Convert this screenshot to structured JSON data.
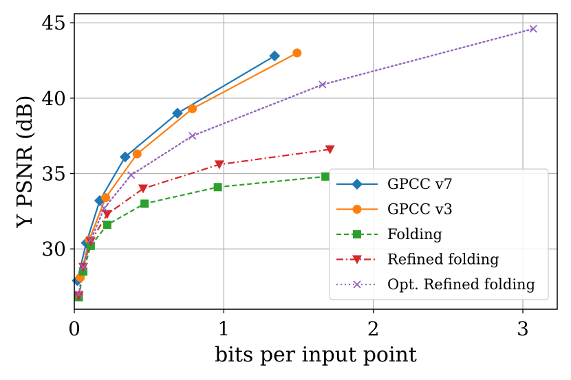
{
  "chart_data": {
    "type": "line",
    "title": "",
    "xlabel": "bits per input point",
    "ylabel": "Y PSNR (dB)",
    "xlim": [
      0,
      3.23
    ],
    "ylim": [
      26.0,
      45.6
    ],
    "xticks": [
      0,
      1,
      2,
      3
    ],
    "yticks": [
      30,
      35,
      40,
      45
    ],
    "grid": true,
    "legend_position": "lower-right",
    "series": [
      {
        "name": "GPCC v7",
        "color": "#1f77b4",
        "marker": "diamond",
        "linestyle": "solid",
        "x": [
          0.02,
          0.08,
          0.17,
          0.34,
          0.69,
          1.34
        ],
        "y": [
          27.9,
          30.4,
          33.2,
          36.1,
          39.0,
          42.8
        ]
      },
      {
        "name": "GPCC v3",
        "color": "#ff7f0e",
        "marker": "circle",
        "linestyle": "solid",
        "x": [
          0.04,
          0.1,
          0.21,
          0.42,
          0.79,
          1.49
        ],
        "y": [
          28.1,
          30.6,
          33.4,
          36.3,
          39.3,
          43.0
        ]
      },
      {
        "name": "Folding",
        "color": "#2ca02c",
        "marker": "square",
        "linestyle": "dashed",
        "x": [
          0.03,
          0.06,
          0.11,
          0.22,
          0.47,
          0.96,
          1.68
        ],
        "y": [
          26.8,
          28.5,
          30.2,
          31.6,
          33.0,
          34.1,
          34.8
        ]
      },
      {
        "name": "Refined folding",
        "color": "#d62728",
        "marker": "triangle-down",
        "linestyle": "dashdot",
        "x": [
          0.03,
          0.06,
          0.11,
          0.22,
          0.46,
          0.97,
          1.71
        ],
        "y": [
          26.9,
          28.8,
          30.5,
          32.3,
          34.0,
          35.6,
          36.6
        ]
      },
      {
        "name": "Opt. Refined folding",
        "color": "#9467bd",
        "marker": "x",
        "linestyle": "dotted",
        "x": [
          0.03,
          0.06,
          0.11,
          0.2,
          0.38,
          0.79,
          1.66,
          3.07
        ],
        "y": [
          27.0,
          28.8,
          30.6,
          32.7,
          34.9,
          37.5,
          40.9,
          44.6
        ]
      }
    ]
  }
}
